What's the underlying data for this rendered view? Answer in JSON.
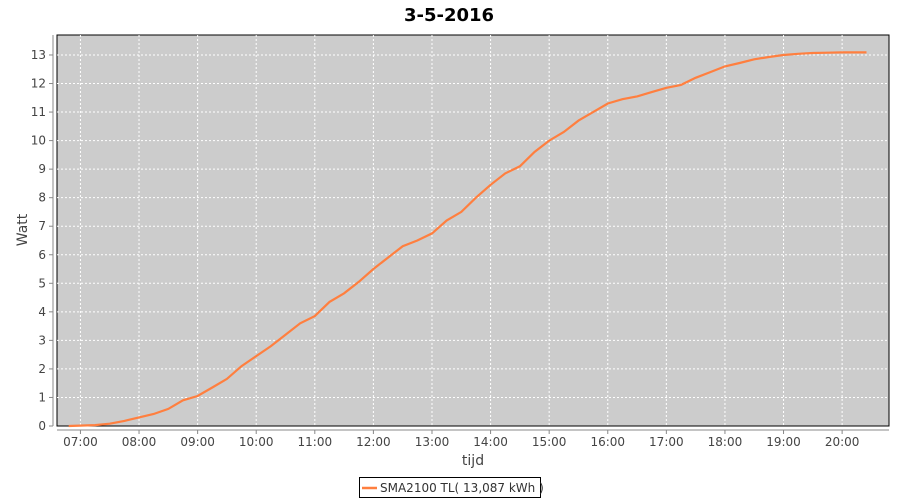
{
  "chart_data": {
    "type": "line",
    "title": "3-5-2016",
    "xlabel": "tijd",
    "ylabel": "Watt",
    "xlim": [
      "06:36",
      "20:48"
    ],
    "ylim": [
      0,
      13.7
    ],
    "x_ticks": [
      "07:00",
      "08:00",
      "09:00",
      "10:00",
      "11:00",
      "12:00",
      "13:00",
      "14:00",
      "15:00",
      "16:00",
      "17:00",
      "18:00",
      "19:00",
      "20:00"
    ],
    "y_ticks": [
      0,
      1,
      2,
      3,
      4,
      5,
      6,
      7,
      8,
      9,
      10,
      11,
      12,
      13
    ],
    "grid": true,
    "legend_position": "bottom",
    "background": "#cccccc",
    "series": [
      {
        "name": "SMA2100 TL( 13,087 kWh )",
        "color": "#ff7f3f",
        "points": [
          [
            "06:48",
            0
          ],
          [
            "07:15",
            0.03
          ],
          [
            "07:30",
            0.08
          ],
          [
            "07:45",
            0.18
          ],
          [
            "08:00",
            0.3
          ],
          [
            "08:15",
            0.42
          ],
          [
            "08:30",
            0.6
          ],
          [
            "08:45",
            0.9
          ],
          [
            "09:00",
            1.05
          ],
          [
            "09:15",
            1.35
          ],
          [
            "09:30",
            1.65
          ],
          [
            "09:45",
            2.1
          ],
          [
            "10:00",
            2.45
          ],
          [
            "10:15",
            2.8
          ],
          [
            "10:30",
            3.2
          ],
          [
            "10:45",
            3.6
          ],
          [
            "11:00",
            3.85
          ],
          [
            "11:15",
            4.35
          ],
          [
            "11:30",
            4.65
          ],
          [
            "11:45",
            5.05
          ],
          [
            "12:00",
            5.5
          ],
          [
            "12:15",
            5.9
          ],
          [
            "12:30",
            6.3
          ],
          [
            "12:45",
            6.5
          ],
          [
            "13:00",
            6.75
          ],
          [
            "13:15",
            7.2
          ],
          [
            "13:30",
            7.5
          ],
          [
            "13:45",
            8.0
          ],
          [
            "14:00",
            8.45
          ],
          [
            "14:15",
            8.85
          ],
          [
            "14:30",
            9.1
          ],
          [
            "14:45",
            9.6
          ],
          [
            "15:00",
            10.0
          ],
          [
            "15:15",
            10.3
          ],
          [
            "15:30",
            10.7
          ],
          [
            "15:45",
            11.0
          ],
          [
            "16:00",
            11.3
          ],
          [
            "16:15",
            11.45
          ],
          [
            "16:30",
            11.55
          ],
          [
            "16:45",
            11.7
          ],
          [
            "17:00",
            11.85
          ],
          [
            "17:15",
            11.95
          ],
          [
            "17:30",
            12.2
          ],
          [
            "17:45",
            12.4
          ],
          [
            "18:00",
            12.6
          ],
          [
            "18:15",
            12.72
          ],
          [
            "18:30",
            12.85
          ],
          [
            "18:45",
            12.93
          ],
          [
            "19:00",
            13.0
          ],
          [
            "19:15",
            13.04
          ],
          [
            "19:30",
            13.07
          ],
          [
            "19:45",
            13.08
          ],
          [
            "20:00",
            13.09
          ],
          [
            "20:25",
            13.09
          ]
        ]
      }
    ]
  }
}
